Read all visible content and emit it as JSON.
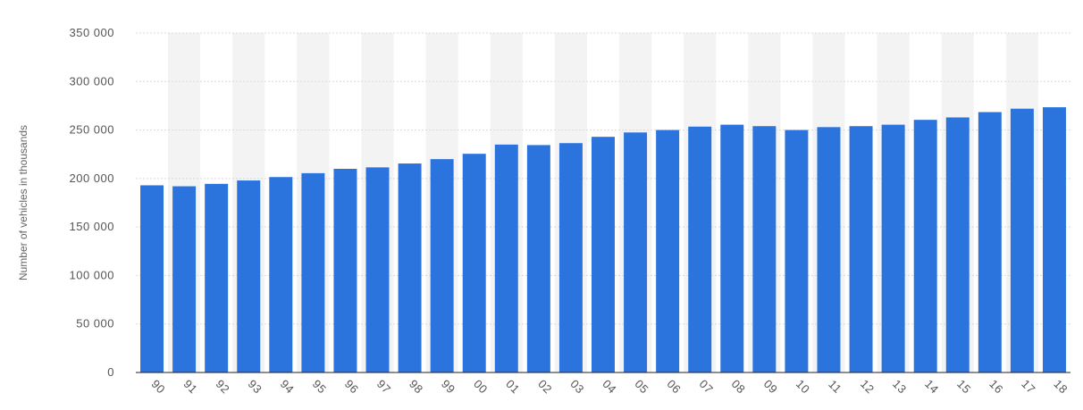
{
  "chart_data": {
    "type": "bar",
    "title": "",
    "xlabel": "",
    "ylabel": "Number of vehicles in thousands",
    "categories": [
      "90",
      "91",
      "92",
      "93",
      "94",
      "95",
      "96",
      "97",
      "98",
      "99",
      "00",
      "01",
      "02",
      "03",
      "04",
      "05",
      "06",
      "07",
      "08",
      "09",
      "10",
      "11",
      "12",
      "13",
      "14",
      "15",
      "16",
      "17",
      "18"
    ],
    "values": [
      193000,
      192000,
      194500,
      198000,
      201500,
      205500,
      210000,
      211500,
      215500,
      220000,
      225500,
      235000,
      234500,
      236500,
      243000,
      247500,
      250000,
      253500,
      255500,
      254000,
      250000,
      253000,
      254000,
      255500,
      260500,
      263000,
      268500,
      272000,
      273500
    ],
    "ylim": [
      0,
      350000
    ],
    "yticks": [
      0,
      50000,
      100000,
      150000,
      200000,
      250000,
      300000,
      350000
    ],
    "ytick_labels": [
      "0",
      "50 000",
      "100 000",
      "150 000",
      "200 000",
      "250 000",
      "300 000",
      "350 000"
    ],
    "grid": true,
    "alternating_column_shading": true,
    "colors": {
      "bar": "#2c74dd",
      "grid": "#d9d9d9",
      "band": "#f3f3f3",
      "axis": "#222222"
    }
  }
}
